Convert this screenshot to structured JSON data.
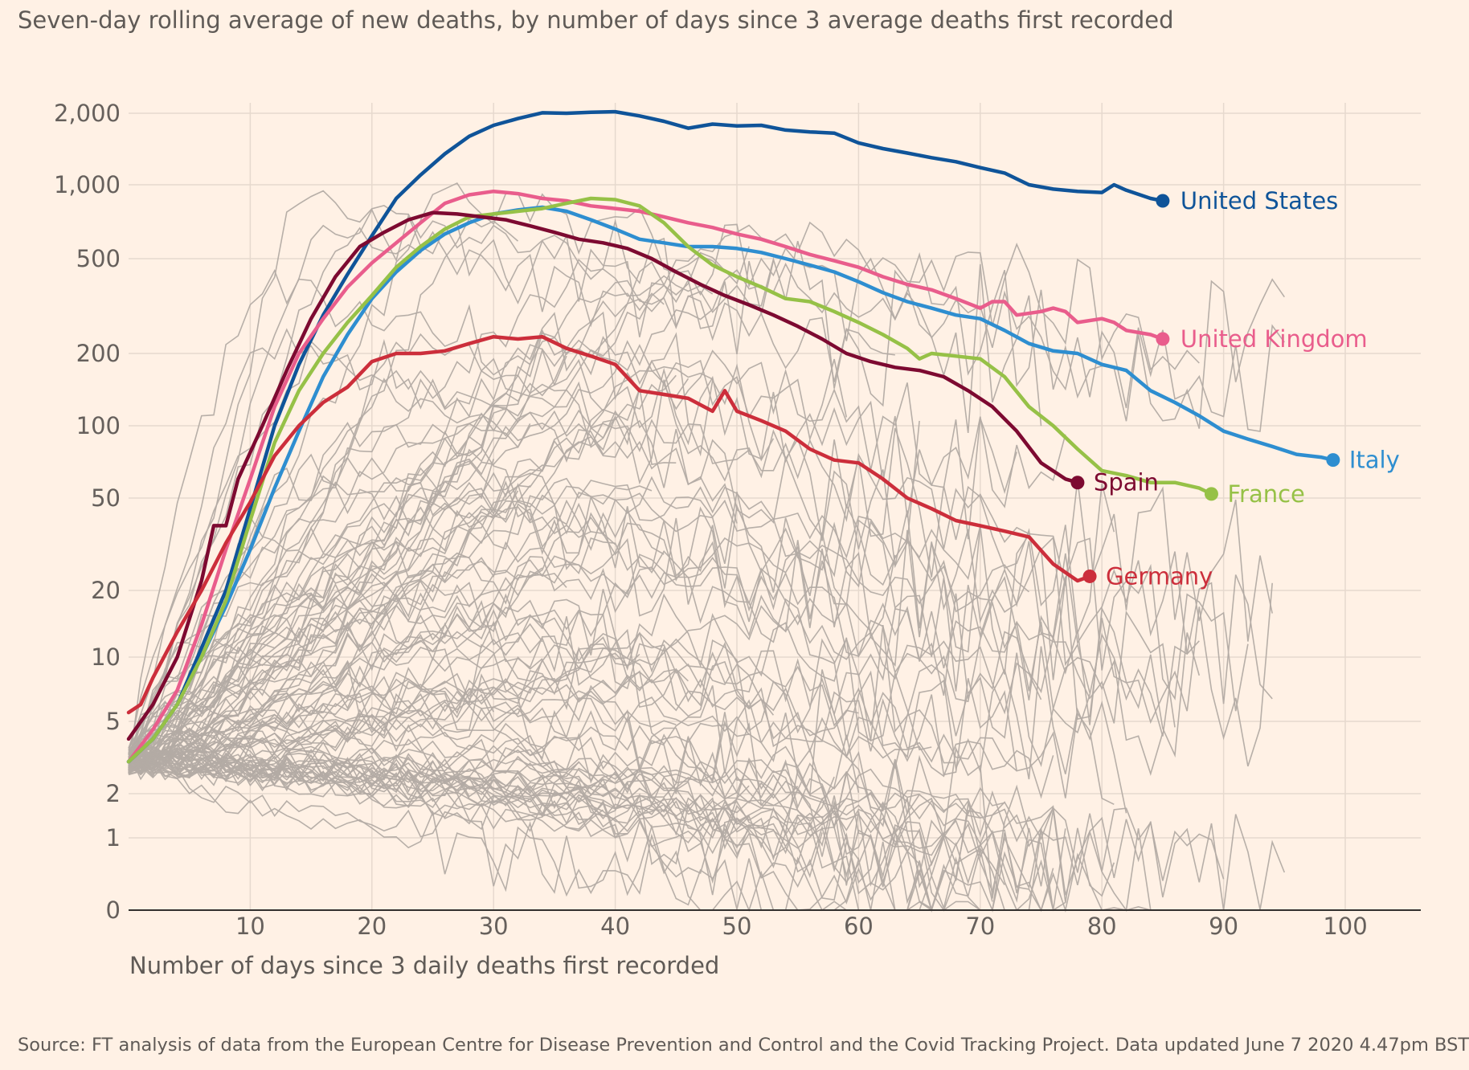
{
  "subtitle": "Seven-day rolling average of new deaths, by number of days since 3 average deaths first recorded",
  "source": "Source: FT analysis of data from the European Centre for Disease Prevention and Control and the Covid Tracking Project. Data updated June 7 2020 4.47pm BST",
  "chart_data": {
    "type": "line",
    "xlabel": "Number of days since 3 daily deaths first recorded",
    "ylabel": "",
    "yscale": "log",
    "xlim": [
      0,
      106
    ],
    "x_ticks": [
      10,
      20,
      30,
      40,
      50,
      60,
      70,
      80,
      90,
      100
    ],
    "y_ticks": [
      {
        "value": 0,
        "label": "0"
      },
      {
        "value": 1,
        "label": "1"
      },
      {
        "value": 2,
        "label": "2"
      },
      {
        "value": 5,
        "label": "5"
      },
      {
        "value": 10,
        "label": "10"
      },
      {
        "value": 20,
        "label": "20"
      },
      {
        "value": 50,
        "label": "50"
      },
      {
        "value": 100,
        "label": "100"
      },
      {
        "value": 200,
        "label": "200"
      },
      {
        "value": 500,
        "label": "500"
      },
      {
        "value": 1000,
        "label": "1,000"
      },
      {
        "value": 2000,
        "label": "2,000"
      }
    ],
    "grid": true,
    "background_series_color": "#b3aba4",
    "series": [
      {
        "name": "United States",
        "color": "#0f5499",
        "points": [
          [
            0,
            3
          ],
          [
            2,
            4
          ],
          [
            4,
            6
          ],
          [
            6,
            11
          ],
          [
            8,
            20
          ],
          [
            10,
            45
          ],
          [
            12,
            100
          ],
          [
            14,
            180
          ],
          [
            16,
            290
          ],
          [
            18,
            430
          ],
          [
            20,
            620
          ],
          [
            22,
            880
          ],
          [
            24,
            1100
          ],
          [
            26,
            1350
          ],
          [
            28,
            1600
          ],
          [
            30,
            1780
          ],
          [
            32,
            1900
          ],
          [
            34,
            2010
          ],
          [
            36,
            2000
          ],
          [
            38,
            2020
          ],
          [
            40,
            2030
          ],
          [
            42,
            1950
          ],
          [
            44,
            1850
          ],
          [
            46,
            1730
          ],
          [
            48,
            1800
          ],
          [
            50,
            1770
          ],
          [
            52,
            1780
          ],
          [
            54,
            1700
          ],
          [
            56,
            1670
          ],
          [
            58,
            1650
          ],
          [
            60,
            1500
          ],
          [
            62,
            1420
          ],
          [
            64,
            1360
          ],
          [
            66,
            1300
          ],
          [
            68,
            1250
          ],
          [
            70,
            1180
          ],
          [
            72,
            1120
          ],
          [
            74,
            1000
          ],
          [
            76,
            960
          ],
          [
            78,
            940
          ],
          [
            80,
            930
          ],
          [
            81,
            1000
          ],
          [
            82,
            950
          ],
          [
            84,
            880
          ],
          [
            85,
            860
          ]
        ]
      },
      {
        "name": "United Kingdom",
        "color": "#e95d8c",
        "points": [
          [
            0,
            3
          ],
          [
            2,
            4.5
          ],
          [
            4,
            7
          ],
          [
            6,
            14
          ],
          [
            8,
            30
          ],
          [
            10,
            60
          ],
          [
            12,
            120
          ],
          [
            14,
            200
          ],
          [
            16,
            280
          ],
          [
            18,
            380
          ],
          [
            20,
            480
          ],
          [
            22,
            580
          ],
          [
            24,
            700
          ],
          [
            26,
            840
          ],
          [
            28,
            910
          ],
          [
            30,
            940
          ],
          [
            32,
            920
          ],
          [
            34,
            880
          ],
          [
            36,
            860
          ],
          [
            38,
            820
          ],
          [
            40,
            800
          ],
          [
            42,
            780
          ],
          [
            44,
            740
          ],
          [
            46,
            700
          ],
          [
            48,
            670
          ],
          [
            50,
            630
          ],
          [
            52,
            600
          ],
          [
            54,
            560
          ],
          [
            56,
            520
          ],
          [
            58,
            490
          ],
          [
            60,
            460
          ],
          [
            62,
            420
          ],
          [
            64,
            390
          ],
          [
            66,
            370
          ],
          [
            68,
            340
          ],
          [
            70,
            310
          ],
          [
            71,
            330
          ],
          [
            72,
            330
          ],
          [
            73,
            290
          ],
          [
            75,
            300
          ],
          [
            76,
            310
          ],
          [
            77,
            300
          ],
          [
            78,
            270
          ],
          [
            80,
            280
          ],
          [
            81,
            270
          ],
          [
            82,
            250
          ],
          [
            84,
            240
          ],
          [
            85,
            230
          ]
        ]
      },
      {
        "name": "Italy",
        "color": "#2e8ed0",
        "points": [
          [
            0,
            3
          ],
          [
            2,
            4
          ],
          [
            4,
            6
          ],
          [
            6,
            10
          ],
          [
            8,
            17
          ],
          [
            10,
            30
          ],
          [
            12,
            55
          ],
          [
            14,
            95
          ],
          [
            16,
            160
          ],
          [
            18,
            240
          ],
          [
            20,
            340
          ],
          [
            22,
            440
          ],
          [
            24,
            540
          ],
          [
            26,
            630
          ],
          [
            28,
            700
          ],
          [
            30,
            760
          ],
          [
            32,
            790
          ],
          [
            34,
            810
          ],
          [
            36,
            780
          ],
          [
            38,
            720
          ],
          [
            40,
            660
          ],
          [
            42,
            600
          ],
          [
            44,
            580
          ],
          [
            46,
            560
          ],
          [
            48,
            560
          ],
          [
            50,
            550
          ],
          [
            52,
            530
          ],
          [
            54,
            500
          ],
          [
            56,
            470
          ],
          [
            58,
            440
          ],
          [
            60,
            400
          ],
          [
            62,
            360
          ],
          [
            64,
            330
          ],
          [
            66,
            310
          ],
          [
            68,
            290
          ],
          [
            70,
            280
          ],
          [
            72,
            250
          ],
          [
            74,
            220
          ],
          [
            76,
            205
          ],
          [
            78,
            200
          ],
          [
            80,
            180
          ],
          [
            82,
            170
          ],
          [
            84,
            140
          ],
          [
            86,
            125
          ],
          [
            88,
            110
          ],
          [
            90,
            95
          ],
          [
            92,
            88
          ],
          [
            94,
            82
          ],
          [
            96,
            76
          ],
          [
            98,
            74
          ],
          [
            99,
            72
          ]
        ]
      },
      {
        "name": "France",
        "color": "#96c147",
        "points": [
          [
            0,
            3
          ],
          [
            2,
            4
          ],
          [
            4,
            6
          ],
          [
            6,
            10
          ],
          [
            8,
            18
          ],
          [
            10,
            40
          ],
          [
            12,
            85
          ],
          [
            14,
            140
          ],
          [
            16,
            200
          ],
          [
            18,
            270
          ],
          [
            20,
            350
          ],
          [
            22,
            460
          ],
          [
            24,
            560
          ],
          [
            26,
            660
          ],
          [
            28,
            740
          ],
          [
            30,
            760
          ],
          [
            32,
            780
          ],
          [
            34,
            800
          ],
          [
            36,
            840
          ],
          [
            38,
            880
          ],
          [
            40,
            870
          ],
          [
            42,
            820
          ],
          [
            44,
            700
          ],
          [
            46,
            560
          ],
          [
            48,
            470
          ],
          [
            50,
            420
          ],
          [
            52,
            380
          ],
          [
            54,
            340
          ],
          [
            56,
            330
          ],
          [
            58,
            300
          ],
          [
            60,
            270
          ],
          [
            62,
            240
          ],
          [
            64,
            210
          ],
          [
            65,
            190
          ],
          [
            66,
            200
          ],
          [
            68,
            195
          ],
          [
            70,
            190
          ],
          [
            72,
            160
          ],
          [
            74,
            120
          ],
          [
            76,
            100
          ],
          [
            78,
            80
          ],
          [
            80,
            65
          ],
          [
            82,
            62
          ],
          [
            84,
            58
          ],
          [
            86,
            58
          ],
          [
            88,
            55
          ],
          [
            89,
            52
          ]
        ]
      },
      {
        "name": "Spain",
        "color": "#7d0a31",
        "points": [
          [
            0,
            4
          ],
          [
            2,
            6
          ],
          [
            4,
            10
          ],
          [
            6,
            22
          ],
          [
            7,
            38
          ],
          [
            8,
            38
          ],
          [
            9,
            60
          ],
          [
            11,
            100
          ],
          [
            13,
            170
          ],
          [
            15,
            280
          ],
          [
            17,
            420
          ],
          [
            19,
            560
          ],
          [
            21,
            640
          ],
          [
            23,
            720
          ],
          [
            25,
            770
          ],
          [
            27,
            760
          ],
          [
            29,
            740
          ],
          [
            31,
            720
          ],
          [
            33,
            680
          ],
          [
            35,
            640
          ],
          [
            37,
            600
          ],
          [
            39,
            580
          ],
          [
            41,
            550
          ],
          [
            43,
            500
          ],
          [
            45,
            440
          ],
          [
            47,
            390
          ],
          [
            49,
            350
          ],
          [
            51,
            320
          ],
          [
            53,
            290
          ],
          [
            55,
            260
          ],
          [
            57,
            230
          ],
          [
            59,
            200
          ],
          [
            61,
            185
          ],
          [
            63,
            175
          ],
          [
            65,
            170
          ],
          [
            67,
            160
          ],
          [
            69,
            140
          ],
          [
            71,
            120
          ],
          [
            73,
            95
          ],
          [
            75,
            70
          ],
          [
            77,
            60
          ],
          [
            78,
            58
          ]
        ]
      },
      {
        "name": "Germany",
        "color": "#cc2e3b",
        "points": [
          [
            0,
            5.5
          ],
          [
            1,
            6
          ],
          [
            2,
            8
          ],
          [
            4,
            13
          ],
          [
            6,
            20
          ],
          [
            8,
            32
          ],
          [
            10,
            48
          ],
          [
            12,
            75
          ],
          [
            14,
            100
          ],
          [
            16,
            125
          ],
          [
            18,
            145
          ],
          [
            20,
            185
          ],
          [
            22,
            200
          ],
          [
            24,
            200
          ],
          [
            26,
            205
          ],
          [
            28,
            220
          ],
          [
            30,
            235
          ],
          [
            32,
            230
          ],
          [
            34,
            235
          ],
          [
            36,
            210
          ],
          [
            38,
            195
          ],
          [
            40,
            180
          ],
          [
            42,
            140
          ],
          [
            44,
            135
          ],
          [
            46,
            130
          ],
          [
            48,
            115
          ],
          [
            49,
            140
          ],
          [
            50,
            115
          ],
          [
            52,
            105
          ],
          [
            54,
            95
          ],
          [
            56,
            80
          ],
          [
            58,
            72
          ],
          [
            60,
            70
          ],
          [
            62,
            60
          ],
          [
            64,
            50
          ],
          [
            66,
            45
          ],
          [
            68,
            40
          ],
          [
            70,
            38
          ],
          [
            72,
            36
          ],
          [
            74,
            34
          ],
          [
            76,
            26
          ],
          [
            78,
            22
          ],
          [
            79,
            23
          ]
        ]
      }
    ]
  }
}
